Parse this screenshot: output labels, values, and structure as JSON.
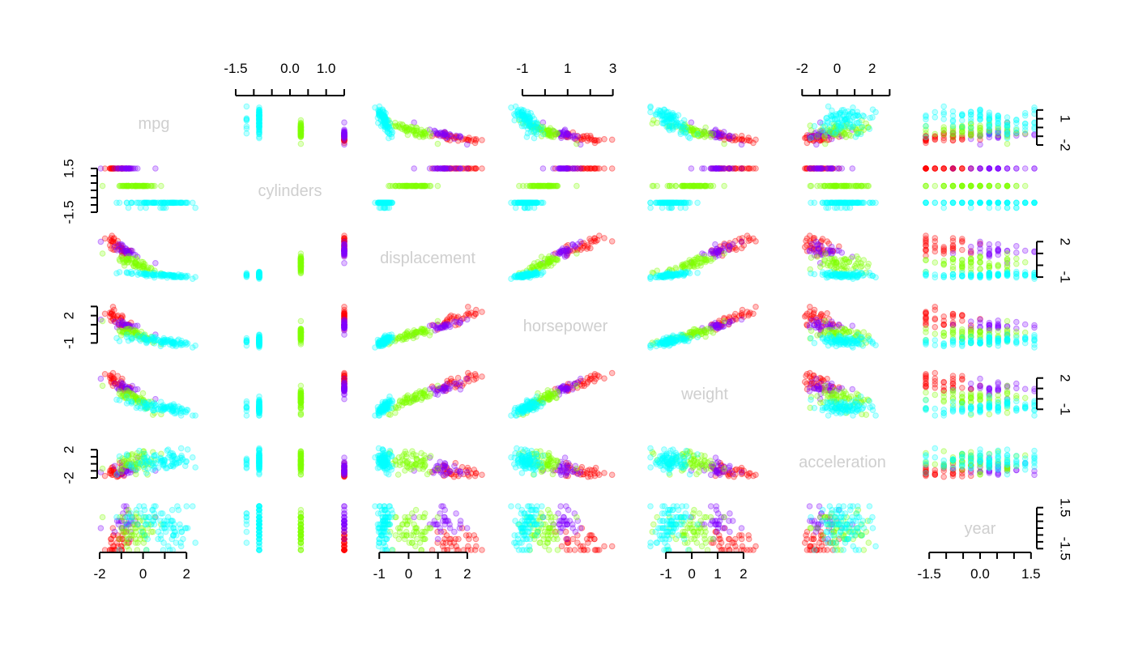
{
  "chart_data": {
    "type": "scatter",
    "layout": "scatterplot-matrix",
    "variables": [
      "mpg",
      "cylinders",
      "displacement",
      "horsepower",
      "weight",
      "acceleration",
      "year"
    ],
    "point_colors": [
      "#ff0000",
      "#8000ff",
      "#80ff00",
      "#00ffff"
    ],
    "point_alpha": 0.25,
    "axis_ranges": {
      "mpg": [
        -2,
        3
      ],
      "cylinders": [
        -1.5,
        1.5
      ],
      "displacement": [
        -1.2,
        2.5
      ],
      "horsepower": [
        -1.5,
        3.3
      ],
      "weight": [
        -1.6,
        2.6
      ],
      "acceleration": [
        -2.8,
        3.4
      ],
      "year": [
        -1.6,
        1.6
      ]
    },
    "axes": [
      {
        "var": "mpg",
        "side": "bottom",
        "ticks": [
          -2,
          -1,
          0,
          1,
          2
        ],
        "labels": [
          "-2",
          "",
          "0",
          "",
          "2"
        ]
      },
      {
        "var": "cylinders",
        "side": "top",
        "ticks": [
          -1.5,
          -1.0,
          -0.5,
          0.0,
          0.5,
          1.0,
          1.5
        ],
        "labels": [
          "-1.5",
          "",
          "",
          "0.0",
          "",
          "1.0",
          ""
        ]
      },
      {
        "var": "displacement",
        "side": "bottom",
        "ticks": [
          -1,
          0,
          1,
          2
        ],
        "labels": [
          "-1",
          "0",
          "1",
          "2"
        ]
      },
      {
        "var": "horsepower",
        "side": "top",
        "ticks": [
          -1,
          0,
          1,
          2,
          3
        ],
        "labels": [
          "-1",
          "",
          "1",
          "",
          "3"
        ]
      },
      {
        "var": "weight",
        "side": "bottom",
        "ticks": [
          -1,
          0,
          1,
          2
        ],
        "labels": [
          "-1",
          "0",
          "1",
          "2"
        ]
      },
      {
        "var": "acceleration",
        "side": "top",
        "ticks": [
          -2,
          -1,
          0,
          1,
          2,
          3
        ],
        "labels": [
          "-2",
          "",
          "0",
          "",
          "2",
          ""
        ]
      },
      {
        "var": "year",
        "side": "bottom",
        "ticks": [
          -1.5,
          -1.0,
          -0.5,
          0.0,
          0.5,
          1.0,
          1.5
        ],
        "labels": [
          "-1.5",
          "",
          "",
          "0.0",
          "",
          "",
          "1.5"
        ]
      },
      {
        "var": "mpg",
        "side": "right",
        "ticks": [
          -2,
          -1,
          0,
          1,
          2
        ],
        "labels": [
          "-2",
          "",
          "",
          "1",
          ""
        ]
      },
      {
        "var": "cylinders",
        "side": "left",
        "ticks": [
          -1.5,
          -1.0,
          -0.5,
          0.0,
          0.5,
          1.0,
          1.5
        ],
        "labels": [
          "-1.5",
          "",
          "",
          "",
          "",
          "",
          "1.5"
        ]
      },
      {
        "var": "displacement",
        "side": "right",
        "ticks": [
          -1,
          0,
          1,
          2
        ],
        "labels": [
          "-1",
          "",
          "",
          "2"
        ]
      },
      {
        "var": "horsepower",
        "side": "left",
        "ticks": [
          -1,
          0,
          1,
          2,
          3
        ],
        "labels": [
          "-1",
          "",
          "",
          "2",
          ""
        ]
      },
      {
        "var": "weight",
        "side": "right",
        "ticks": [
          -1,
          0,
          1,
          2
        ],
        "labels": [
          "-1",
          "",
          "",
          "2"
        ]
      },
      {
        "var": "acceleration",
        "side": "left",
        "ticks": [
          -2,
          -1,
          0,
          1,
          2
        ],
        "labels": [
          "-2",
          "",
          "",
          "",
          "2"
        ]
      },
      {
        "var": "year",
        "side": "right",
        "ticks": [
          -1.5,
          -1.0,
          -0.5,
          0.0,
          0.5,
          1.0,
          1.5
        ],
        "labels": [
          "-1.5",
          "",
          "",
          "",
          "",
          "",
          "1.5"
        ]
      }
    ],
    "clusters": [
      {
        "cylinders": 1.5,
        "means": {
          "mpg": -1.15,
          "displacement": 1.6,
          "horsepower": 1.6,
          "weight": 1.5,
          "acceleration": -1.2,
          "year": -0.9
        },
        "sds": {
          "mpg": 0.25,
          "displacement": 0.45,
          "horsepower": 0.7,
          "weight": 0.5,
          "acceleration": 0.6,
          "year": 0.6
        }
      },
      {
        "cylinders": 1.5,
        "means": {
          "mpg": -0.75,
          "displacement": 1.2,
          "horsepower": 0.85,
          "weight": 1.0,
          "acceleration": -0.6,
          "year": 0.35
        },
        "sds": {
          "mpg": 0.3,
          "displacement": 0.35,
          "horsepower": 0.35,
          "weight": 0.4,
          "acceleration": 0.6,
          "year": 0.7
        }
      },
      {
        "cylinders": 0.3,
        "means": {
          "mpg": -0.35,
          "displacement": 0.1,
          "horsepower": -0.05,
          "weight": 0.0,
          "acceleration": 0.1,
          "year": -0.25
        },
        "sds": {
          "mpg": 0.4,
          "displacement": 0.35,
          "horsepower": 0.45,
          "weight": 0.5,
          "acceleration": 0.8,
          "year": 0.85
        }
      },
      {
        "cylinders": -0.85,
        "means": {
          "mpg": 0.9,
          "displacement": -0.85,
          "horsepower": -0.8,
          "weight": -0.85,
          "acceleration": 0.45,
          "year": 0.35
        },
        "sds": {
          "mpg": 0.7,
          "displacement": 0.15,
          "horsepower": 0.35,
          "weight": 0.4,
          "acceleration": 0.9,
          "year": 0.9
        }
      }
    ]
  }
}
